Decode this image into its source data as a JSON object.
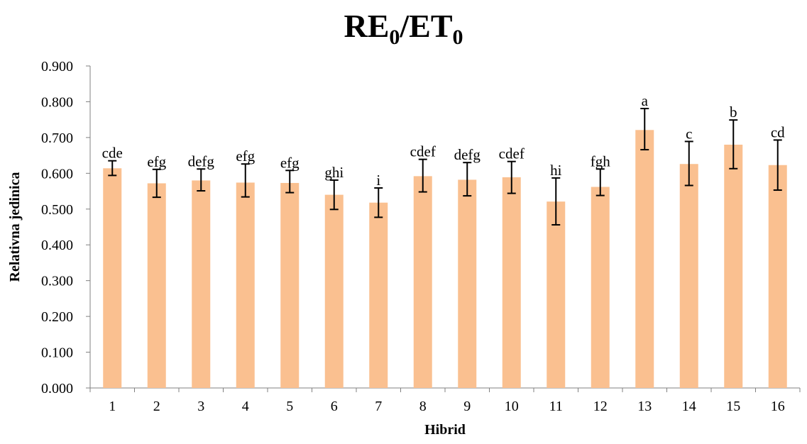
{
  "title": {
    "part1": "RE",
    "sub1": "0",
    "part2": "/ET",
    "sub2": "0"
  },
  "colors": {
    "bar": "#FAC090",
    "error_bar": "#000000",
    "axis": "#808080"
  },
  "chart_data": {
    "type": "bar",
    "title": "RE0/ET0",
    "xlabel": "Hibrid",
    "ylabel": "Relativna jedinica",
    "ylim": [
      0,
      0.9
    ],
    "y_ticks": [
      "0.000",
      "0.100",
      "0.200",
      "0.300",
      "0.400",
      "0.500",
      "0.600",
      "0.700",
      "0.800",
      "0.900"
    ],
    "grid": false,
    "categories": [
      "1",
      "2",
      "3",
      "4",
      "5",
      "6",
      "7",
      "8",
      "9",
      "10",
      "11",
      "12",
      "13",
      "14",
      "15",
      "16"
    ],
    "values": [
      0.614,
      0.572,
      0.58,
      0.574,
      0.573,
      0.54,
      0.518,
      0.592,
      0.582,
      0.589,
      0.521,
      0.562,
      0.721,
      0.626,
      0.68,
      0.623
    ],
    "error_low": [
      0.594,
      0.533,
      0.551,
      0.534,
      0.546,
      0.499,
      0.477,
      0.548,
      0.537,
      0.544,
      0.456,
      0.538,
      0.666,
      0.566,
      0.613,
      0.553
    ],
    "error_high": [
      0.635,
      0.611,
      0.612,
      0.626,
      0.608,
      0.581,
      0.559,
      0.639,
      0.63,
      0.633,
      0.587,
      0.612,
      0.781,
      0.689,
      0.749,
      0.693
    ],
    "significance_labels": [
      "cde",
      "efg",
      "defg",
      "efg",
      "efg",
      "ghi",
      "i",
      "cdef",
      "defg",
      "cdef",
      "hi",
      "fgh",
      "a",
      "c",
      "b",
      "cd"
    ]
  }
}
